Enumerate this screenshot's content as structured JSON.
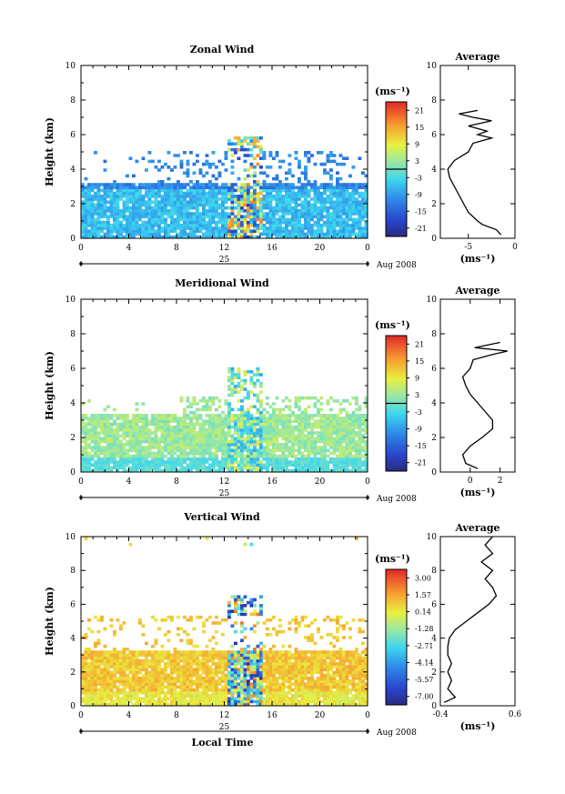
{
  "chart_data": [
    {
      "type": "heatmap",
      "title": "Zonal Wind",
      "ylabel": "Height (km)",
      "xlim": [
        0,
        24
      ],
      "ylim": [
        0,
        10
      ],
      "x_ticks": [
        "0",
        "4",
        "8",
        "12",
        "16",
        "20",
        "0"
      ],
      "y_ticks": [
        "0",
        "2",
        "4",
        "6",
        "8",
        "10"
      ],
      "day_label": "25",
      "date_label": "Aug 2008",
      "colorbar": {
        "unit": "(ms⁻¹)",
        "range": [
          -24,
          24
        ],
        "ticks": [
          "21",
          "15",
          "9",
          "3",
          "-3",
          "-9",
          "-15",
          "-21"
        ],
        "zero_line": true
      },
      "average_profile": {
        "title": "Average",
        "xlabel": "(ms⁻¹)",
        "xlim": [
          -8,
          0
        ],
        "x_ticks": [
          "-5",
          "0"
        ],
        "ylim": [
          0,
          10
        ],
        "y_ticks": [
          "0",
          "2",
          "4",
          "6",
          "8",
          "10"
        ],
        "heights": [
          0.2,
          0.5,
          0.8,
          1.0,
          1.5,
          2.0,
          2.5,
          3.0,
          3.5,
          4.0,
          4.5,
          5.0,
          5.5,
          5.8,
          6.0,
          6.2,
          6.5,
          6.8,
          7.0,
          7.2,
          7.4
        ],
        "values": [
          -1.5,
          -2.0,
          -3.5,
          -4.0,
          -5.0,
          -5.5,
          -6.0,
          -6.5,
          -7.0,
          -7.2,
          -6.5,
          -5.0,
          -4.5,
          -2.5,
          -4.0,
          -3.0,
          -5.0,
          -2.5,
          -4.5,
          -6.0,
          -4.0
        ]
      }
    },
    {
      "type": "heatmap",
      "title": "Meridional Wind",
      "ylabel": "Height (km)",
      "xlim": [
        0,
        24
      ],
      "ylim": [
        0,
        10
      ],
      "x_ticks": [
        "0",
        "4",
        "8",
        "12",
        "16",
        "20",
        "0"
      ],
      "y_ticks": [
        "0",
        "2",
        "4",
        "6",
        "8",
        "10"
      ],
      "day_label": "25",
      "date_label": "Aug 2008",
      "colorbar": {
        "unit": "(ms⁻¹)",
        "range": [
          -24,
          24
        ],
        "ticks": [
          "21",
          "15",
          "9",
          "3",
          "-3",
          "-9",
          "-15",
          "-21"
        ],
        "zero_line": true
      },
      "average_profile": {
        "title": "Average",
        "xlabel": "(ms⁻¹)",
        "xlim": [
          -2,
          3
        ],
        "x_ticks": [
          "0",
          "2"
        ],
        "ylim": [
          0,
          10
        ],
        "y_ticks": [
          "0",
          "2",
          "4",
          "6",
          "8",
          "10"
        ],
        "heights": [
          0.2,
          0.5,
          1.0,
          1.5,
          2.0,
          2.5,
          3.0,
          3.5,
          4.0,
          4.5,
          5.0,
          5.5,
          6.0,
          6.5,
          6.8,
          7.0,
          7.2,
          7.5
        ],
        "values": [
          0.5,
          -0.3,
          -0.5,
          0.0,
          0.8,
          1.5,
          1.5,
          1.0,
          0.5,
          0.0,
          -0.3,
          -0.5,
          0.0,
          0.2,
          1.5,
          2.5,
          0.3,
          2.0
        ]
      }
    },
    {
      "type": "heatmap",
      "title": "Vertical Wind",
      "ylabel": "Height (km)",
      "xlabel": "Local Time",
      "xlim": [
        0,
        24
      ],
      "ylim": [
        0,
        10
      ],
      "x_ticks": [
        "0",
        "4",
        "8",
        "12",
        "16",
        "20",
        "0"
      ],
      "y_ticks": [
        "0",
        "2",
        "4",
        "6",
        "8",
        "10"
      ],
      "day_label": "25",
      "date_label": "Aug 2008",
      "colorbar": {
        "unit": "(ms⁻¹)",
        "range": [
          -8.5,
          4.5
        ],
        "ticks": [
          "3.00",
          "1.57",
          "0.14",
          "-1.28",
          "-2.71",
          "-4.14",
          "-5.57",
          "-7.00"
        ],
        "zero_line": false
      },
      "average_profile": {
        "title": "Average",
        "xlabel": "(ms⁻¹)",
        "xlim": [
          -0.4,
          0.6
        ],
        "x_ticks": [
          "-0.4",
          "0.6"
        ],
        "ylim": [
          0,
          10
        ],
        "y_ticks": [
          "0",
          "2",
          "4",
          "6",
          "8",
          "10"
        ],
        "heights": [
          0.2,
          0.5,
          1.0,
          1.5,
          2.0,
          2.5,
          3.0,
          3.5,
          4.0,
          4.5,
          5.0,
          5.5,
          6.0,
          6.5,
          7.0,
          7.5,
          8.0,
          8.5,
          9.0,
          9.5,
          10.0
        ],
        "values": [
          -0.35,
          -0.2,
          -0.3,
          -0.25,
          -0.3,
          -0.25,
          -0.3,
          -0.3,
          -0.28,
          -0.2,
          -0.05,
          0.1,
          0.25,
          0.35,
          0.3,
          0.2,
          0.3,
          0.15,
          0.3,
          0.2,
          0.3
        ]
      }
    }
  ]
}
